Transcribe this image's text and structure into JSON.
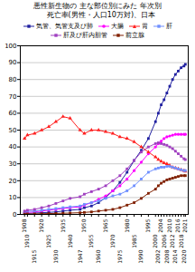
{
  "chart_data": {
    "type": "line",
    "title": "悪性新生物の 主な部位別にみた 年次別\n   死亡率(男性・人口10万対)、日本",
    "x": [
      1908,
      1910,
      1915,
      1920,
      1925,
      1930,
      1935,
      1940,
      1947,
      1950,
      1955,
      1960,
      1965,
      1970,
      1975,
      1980,
      1985,
      1990,
      1995,
      2000,
      2002,
      2004,
      2006,
      2008,
      2010,
      2012,
      2014,
      2016,
      2018,
      2020,
      2021
    ],
    "xlim": [
      1905,
      2023
    ],
    "xticks": [
      1908,
      1910,
      1915,
      1920,
      1925,
      1930,
      1935,
      1940,
      1947,
      1950,
      1955,
      1960,
      1965,
      1970,
      1975,
      1980,
      1985,
      1990,
      1995,
      2000,
      2002,
      2004,
      2006,
      2008,
      2010,
      2012,
      2014,
      2016,
      2018,
      2020,
      2021
    ],
    "ylim": [
      0,
      100
    ],
    "yticks": [
      0,
      10,
      20,
      30,
      40,
      50,
      60,
      70,
      80,
      90,
      100
    ],
    "grid": true,
    "legend": "top",
    "series": [
      {
        "name": "気管、気管支及び肺",
        "color": "#2020A0",
        "marker": "square",
        "values": [
          0.5,
          0.6,
          0.8,
          1.0,
          1.2,
          1.5,
          2.0,
          2.5,
          3.0,
          4.0,
          5.0,
          7.0,
          10.0,
          14.0,
          19.0,
          25.0,
          32.0,
          38.0,
          45.0,
          55.0,
          60.0,
          65.0,
          68.0,
          72.0,
          76.0,
          80.0,
          83.0,
          85.0,
          87.0,
          88.0,
          89.0
        ]
      },
      {
        "name": "大腸",
        "color": "#FF00FF",
        "marker": "circle",
        "values": [
          1.0,
          1.2,
          1.5,
          2.0,
          2.5,
          3.0,
          3.5,
          4.0,
          4.5,
          5.5,
          7.0,
          9.0,
          11.0,
          14.0,
          17.0,
          21.0,
          26.0,
          31.0,
          36.0,
          40.0,
          42.0,
          43.5,
          45.0,
          46.0,
          46.5,
          47.0,
          47.5,
          47.5,
          47.5,
          47.5,
          47.5
        ]
      },
      {
        "name": "胃",
        "color": "#FF2020",
        "marker": "triangle",
        "values": [
          45.0,
          47.0,
          48.0,
          50.0,
          52.0,
          55.0,
          58.0,
          57.0,
          50.0,
          48.0,
          50.0,
          50.0,
          49.0,
          48.0,
          46.0,
          45.0,
          43.0,
          40.0,
          37.0,
          34.0,
          32.5,
          31.5,
          30.5,
          30.0,
          29.0,
          28.0,
          27.5,
          27.0,
          26.5,
          26.0,
          25.5
        ]
      },
      {
        "name": "肝",
        "color": "#7090FF",
        "marker": "square",
        "values": [
          1.5,
          1.8,
          2.0,
          2.5,
          3.0,
          3.5,
          4.0,
          4.5,
          5.0,
          6.0,
          7.0,
          8.0,
          9.5,
          11.0,
          12.0,
          14.0,
          17.0,
          21.0,
          25.0,
          27.0,
          27.5,
          28.0,
          28.0,
          28.5,
          28.5,
          28.0,
          27.5,
          27.0,
          26.5,
          26.0,
          26.0
        ]
      },
      {
        "name": "肝及び肝内胆管",
        "color": "#A040C0",
        "marker": "square",
        "values": [
          2.0,
          2.5,
          3.0,
          4.0,
          5.0,
          6.5,
          8.0,
          9.5,
          10.5,
          12.0,
          13.5,
          15.0,
          17.0,
          20.0,
          23.0,
          27.0,
          32.0,
          37.0,
          40.0,
          42.0,
          42.5,
          42.0,
          41.5,
          41.0,
          40.0,
          39.0,
          37.5,
          36.0,
          34.5,
          33.0,
          32.5
        ]
      },
      {
        "name": "前立腺",
        "color": "#802000",
        "marker": "square",
        "values": [
          0.2,
          0.3,
          0.3,
          0.4,
          0.5,
          0.6,
          0.7,
          0.8,
          1.0,
          1.2,
          1.5,
          2.0,
          2.5,
          3.0,
          4.0,
          5.5,
          7.0,
          9.5,
          12.5,
          15.0,
          17.0,
          18.5,
          19.5,
          20.5,
          21.0,
          21.5,
          22.0,
          22.5,
          23.0,
          23.0,
          23.0
        ]
      }
    ]
  }
}
